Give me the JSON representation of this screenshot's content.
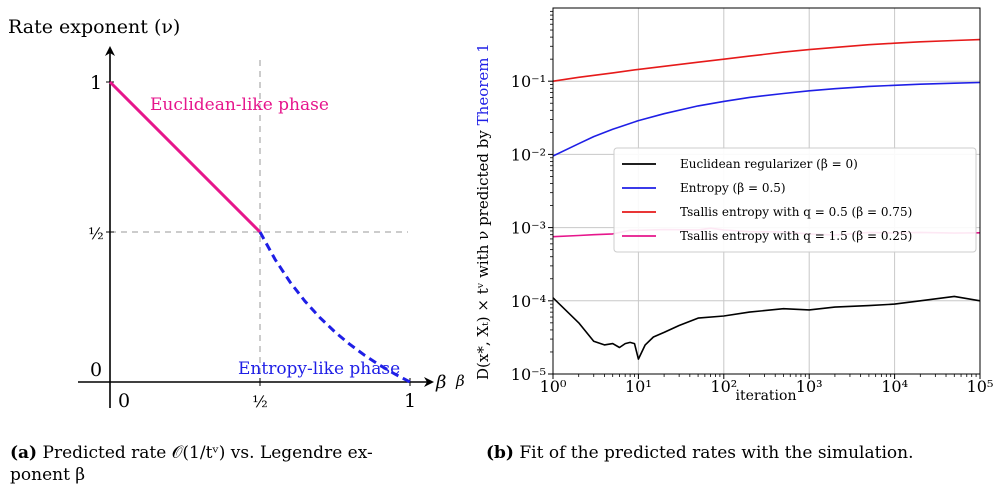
{
  "captions": {
    "a_tag": "(a)",
    "a_text": "Predicted rate ᵏ(1/t^ν) vs. Legendre exponent β",
    "a_line1": "Predicted rate 𝒪(1/tᵛ) vs. Legendre ex-",
    "a_line2": "ponent β",
    "b_tag": "(b)",
    "b_text": "Fit of the predicted rates with the simulation."
  },
  "chart_data": [
    {
      "type": "line",
      "ylabel": "Rate exponent (ν)",
      "xlabel": "β",
      "xlim": [
        0,
        1
      ],
      "ylim": [
        0,
        1
      ],
      "x_ticks": [
        "0",
        "½",
        "1"
      ],
      "y_ticks": [
        "0",
        "½",
        "1"
      ],
      "guides": {
        "x": 0.5,
        "y": 0.5
      },
      "colors": {
        "euclidean": "#e6168c",
        "entropy": "#1f1fe6"
      },
      "series": [
        {
          "name": "Euclidean-like phase",
          "style": "solid",
          "x": [
            0,
            0.5
          ],
          "y": [
            1,
            0.5
          ]
        },
        {
          "name": "Entropy-like phase",
          "style": "dashed",
          "x": [
            0.5,
            0.55,
            0.6,
            0.65,
            0.7,
            0.75,
            0.8,
            0.85,
            0.9,
            0.95,
            1.0
          ],
          "y": [
            0.5,
            0.4091,
            0.3333,
            0.2692,
            0.2143,
            0.1667,
            0.125,
            0.0882,
            0.0556,
            0.0263,
            0
          ]
        }
      ]
    },
    {
      "type": "line",
      "ylabel": "D(x*, X_t) × t^ν with ν predicted by Theorem 1",
      "ylabel_parts": {
        "beta": "β",
        "main": "D(x*, Xₜ) × tᵛ with ν predicted by",
        "link": "Theorem 1"
      },
      "xlabel": "iteration",
      "xscale": "log",
      "yscale": "log",
      "xlim": [
        1,
        100000
      ],
      "ylim": [
        1e-05,
        1
      ],
      "x_ticks": [
        "10⁰",
        "10¹",
        "10²",
        "10³",
        "10⁴",
        "10⁵"
      ],
      "y_ticks": [
        "10⁻⁵",
        "10⁻⁴",
        "10⁻³",
        "10⁻²",
        "10⁻¹"
      ],
      "grid": true,
      "legend": "center-right",
      "series": [
        {
          "name": "Euclidean regularizer (β = 0)",
          "color": "#000000",
          "x": [
            1,
            2,
            3,
            4,
            5,
            6,
            7,
            8,
            9,
            10,
            12,
            15,
            20,
            30,
            50,
            100,
            200,
            500,
            1000,
            2000,
            5000,
            10000,
            20000,
            50000,
            100000
          ],
          "y": [
            0.00011,
            5e-05,
            2.8e-05,
            2.5e-05,
            2.6e-05,
            2.3e-05,
            2.6e-05,
            2.7e-05,
            2.6e-05,
            1.6e-05,
            2.5e-05,
            3.2e-05,
            3.7e-05,
            4.6e-05,
            5.8e-05,
            6.2e-05,
            7e-05,
            7.8e-05,
            7.5e-05,
            8.2e-05,
            8.6e-05,
            9e-05,
            0.0001,
            0.000115,
            0.0001
          ]
        },
        {
          "name": "Entropy (β = 0.5)",
          "color": "#1f1fe6",
          "x": [
            1,
            2,
            3,
            5,
            10,
            20,
            50,
            100,
            200,
            500,
            1000,
            2000,
            5000,
            10000,
            20000,
            50000,
            100000
          ],
          "y": [
            0.0095,
            0.014,
            0.0175,
            0.022,
            0.029,
            0.036,
            0.046,
            0.053,
            0.06,
            0.068,
            0.074,
            0.079,
            0.085,
            0.088,
            0.091,
            0.094,
            0.096
          ]
        },
        {
          "name": "Tsallis entropy with q = 0.5 (β = 0.75)",
          "color": "#e61a1a",
          "x": [
            1,
            2,
            5,
            10,
            20,
            50,
            100,
            200,
            500,
            1000,
            2000,
            5000,
            10000,
            20000,
            50000,
            100000
          ],
          "y": [
            0.1,
            0.113,
            0.13,
            0.145,
            0.16,
            0.182,
            0.2,
            0.22,
            0.25,
            0.27,
            0.29,
            0.315,
            0.33,
            0.345,
            0.36,
            0.37
          ]
        },
        {
          "name": "Tsallis entropy with q = 1.5 (β = 0.25)",
          "color": "#e6168c",
          "x": [
            1,
            2,
            3,
            5,
            8,
            10,
            20,
            50,
            70,
            100,
            200,
            500,
            1000,
            2000,
            5000,
            10000,
            20000,
            50000,
            100000
          ],
          "y": [
            0.00075,
            0.00078,
            0.0008,
            0.00082,
            0.00092,
            0.00092,
            0.00094,
            0.00093,
            0.00098,
            0.00093,
            0.00088,
            0.00087,
            0.00082,
            0.00079,
            0.00086,
            0.00084,
            0.00086,
            0.00084,
            0.00085
          ]
        }
      ]
    }
  ]
}
